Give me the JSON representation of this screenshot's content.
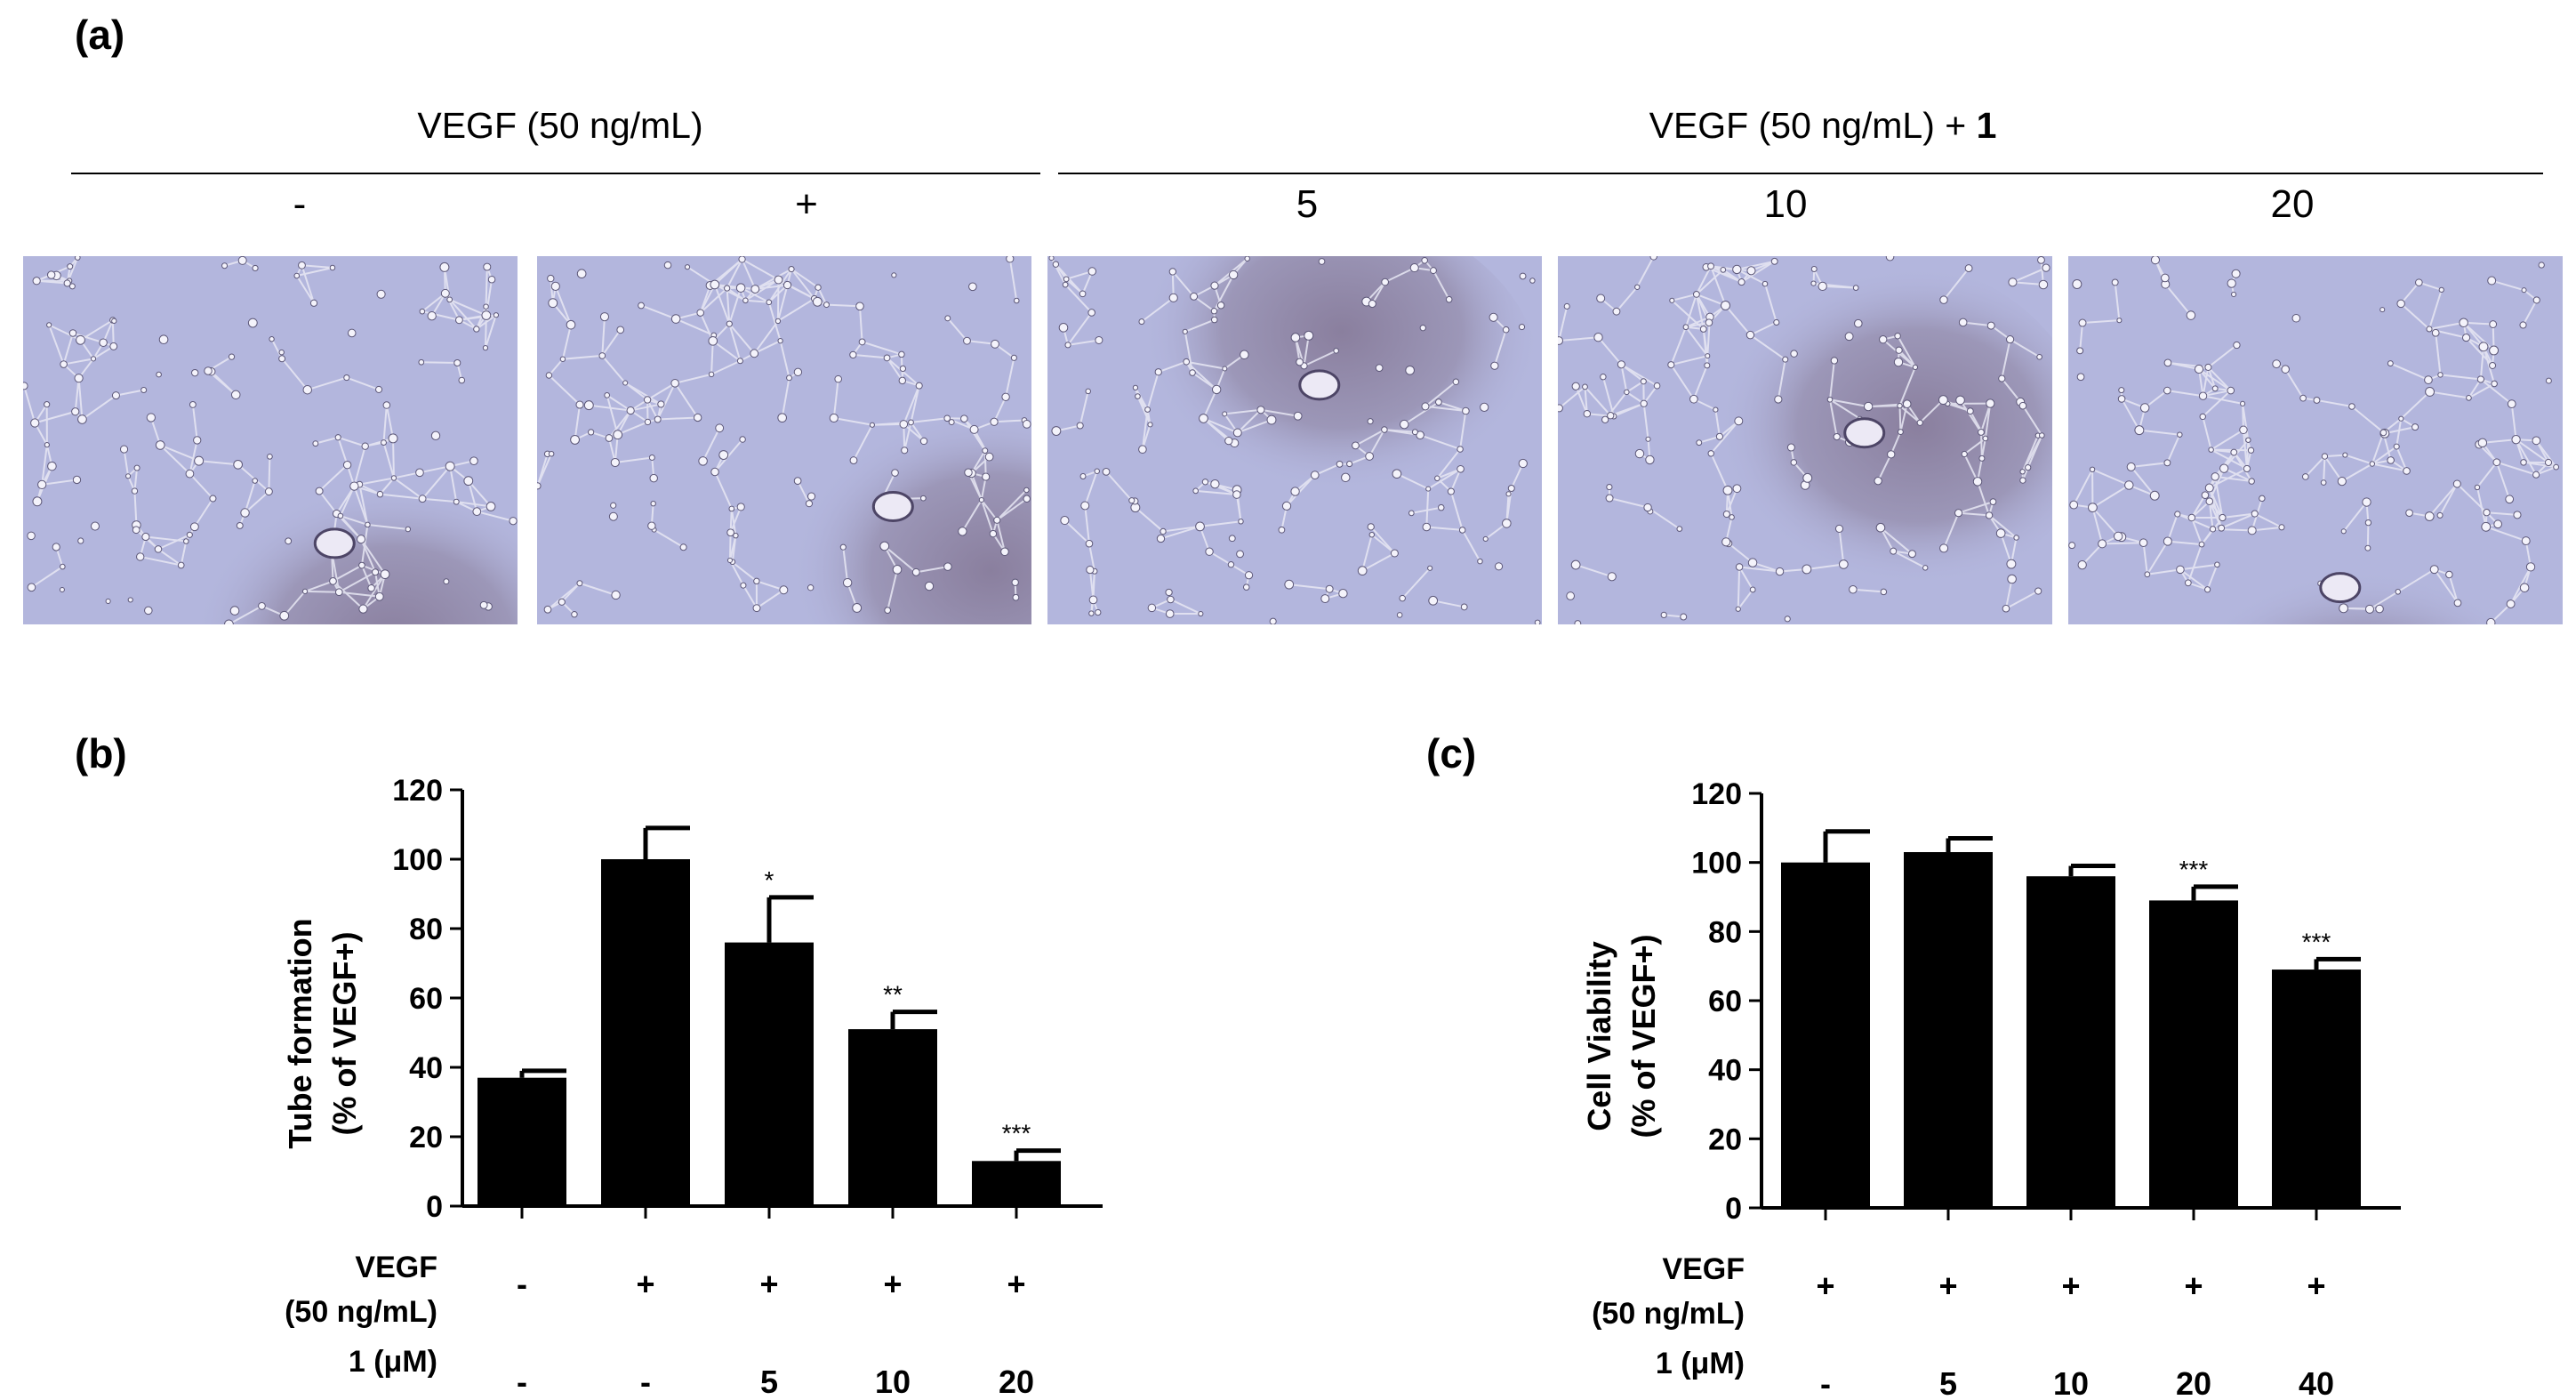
{
  "panel_labels": {
    "a": "(a)",
    "b": "(b)",
    "c": "(c)"
  },
  "panel_a": {
    "group_left": "VEGF (50 ng/mL)",
    "group_right_prefix": "VEGF (50 ng/mL) + ",
    "group_right_compound": "1",
    "doses": [
      "-",
      "+",
      "5",
      "10",
      "20"
    ],
    "image_tint": "#b3b6dd"
  },
  "chart_data": [
    {
      "type": "bar",
      "panel": "(b)",
      "ylabel_line1": "Tube formation",
      "ylabel_line2": "(% of VEGF+)",
      "ylim": [
        0,
        120
      ],
      "yticks": [
        "0",
        "20",
        "40",
        "60",
        "80",
        "100",
        "120"
      ],
      "series": [
        {
          "values": [
            37,
            100,
            76,
            51,
            13
          ],
          "errors": [
            2,
            9,
            13,
            5,
            3
          ],
          "significance": [
            "",
            "",
            "*",
            "**",
            "***"
          ]
        }
      ],
      "rows": [
        {
          "label_line1": "VEGF",
          "label_line2": "(50 ng/mL)",
          "values": [
            "-",
            "+",
            "+",
            "+",
            "+"
          ]
        },
        {
          "label_line1": "1 (μM)",
          "label_line2": "",
          "values": [
            "-",
            "-",
            "5",
            "10",
            "20"
          ]
        }
      ],
      "bar_color": "#000000"
    },
    {
      "type": "bar",
      "panel": "(c)",
      "ylabel_line1": "Cell Viability",
      "ylabel_line2": "(% of VEGF+)",
      "ylim": [
        0,
        120
      ],
      "yticks": [
        "0",
        "20",
        "40",
        "60",
        "80",
        "100",
        "120"
      ],
      "series": [
        {
          "values": [
            100,
            103,
            96,
            89,
            69
          ],
          "errors": [
            9,
            4,
            3,
            4,
            3
          ],
          "significance": [
            "",
            "",
            "",
            "***",
            "***"
          ]
        }
      ],
      "rows": [
        {
          "label_line1": "VEGF",
          "label_line2": "(50 ng/mL)",
          "values": [
            "+",
            "+",
            "+",
            "+",
            "+"
          ]
        },
        {
          "label_line1": "1 (μM)",
          "label_line2": "",
          "values": [
            "-",
            "5",
            "10",
            "20",
            "40"
          ]
        }
      ],
      "bar_color": "#000000"
    }
  ]
}
